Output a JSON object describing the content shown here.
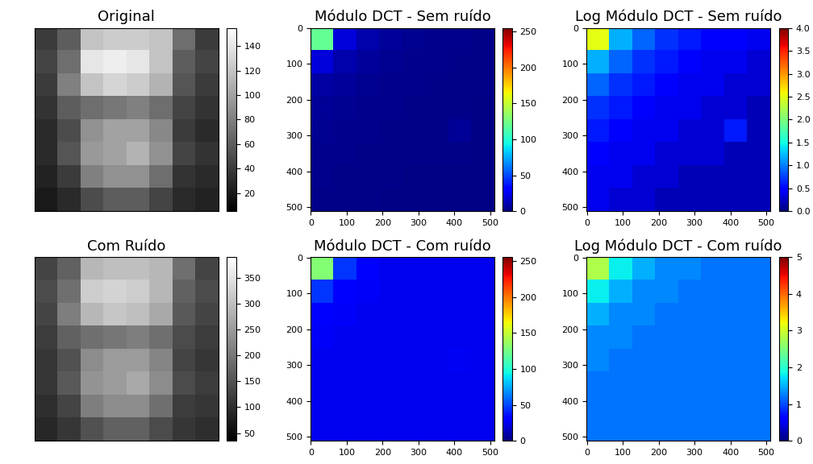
{
  "chart_data": [
    {
      "type": "heatmap",
      "title": "Original",
      "color": "gray",
      "tick_labels": false,
      "cells": [
        [
          40,
          60,
          120,
          125,
          125,
          120,
          70,
          40
        ],
        [
          45,
          70,
          140,
          145,
          140,
          120,
          60,
          45
        ],
        [
          40,
          80,
          120,
          130,
          125,
          110,
          55,
          40
        ],
        [
          35,
          60,
          70,
          75,
          80,
          70,
          45,
          35
        ],
        [
          30,
          50,
          90,
          100,
          100,
          85,
          40,
          30
        ],
        [
          30,
          55,
          95,
          100,
          110,
          90,
          45,
          35
        ],
        [
          25,
          40,
          80,
          90,
          90,
          70,
          35,
          30
        ],
        [
          20,
          30,
          50,
          60,
          60,
          45,
          30,
          25
        ]
      ],
      "color_range": [
        5,
        155
      ],
      "color_ticks": [
        20,
        40,
        60,
        80,
        100,
        120,
        140
      ]
    },
    {
      "type": "heatmap",
      "title": "Módulo DCT - Sem ruído",
      "color": "jet",
      "xlim": [
        -0.5,
        511.5
      ],
      "ylim": [
        511.5,
        -0.5
      ],
      "xticks": [
        0,
        100,
        200,
        300,
        400,
        500
      ],
      "yticks": [
        0,
        100,
        200,
        300,
        400,
        500
      ],
      "cells": [
        [
          120,
          20,
          10,
          6,
          4,
          3,
          3,
          2
        ],
        [
          20,
          10,
          6,
          4,
          3,
          3,
          2,
          2
        ],
        [
          8,
          6,
          4,
          3,
          3,
          2,
          2,
          2
        ],
        [
          5,
          4,
          3,
          3,
          2,
          2,
          2,
          1
        ],
        [
          4,
          3,
          3,
          2,
          2,
          2,
          5,
          1
        ],
        [
          3,
          3,
          2,
          2,
          2,
          2,
          2,
          1
        ],
        [
          3,
          2,
          2,
          2,
          1,
          1,
          1,
          1
        ],
        [
          2,
          2,
          2,
          1,
          1,
          1,
          1,
          1
        ]
      ],
      "color_range": [
        0,
        255
      ],
      "color_ticks": [
        0,
        50,
        100,
        150,
        200,
        250
      ]
    },
    {
      "type": "heatmap",
      "title": "Log Módulo DCT - Sem ruído",
      "color": "jet",
      "xlim": [
        -0.5,
        511.5
      ],
      "ylim": [
        511.5,
        -0.5
      ],
      "xticks": [
        0,
        100,
        200,
        300,
        400,
        500
      ],
      "yticks": [
        0,
        100,
        200,
        300,
        400,
        500
      ],
      "cells": [
        [
          2.5,
          1.2,
          0.9,
          0.7,
          0.6,
          0.5,
          0.5,
          0.4
        ],
        [
          1.2,
          0.9,
          0.7,
          0.6,
          0.5,
          0.4,
          0.4,
          0.3
        ],
        [
          0.9,
          0.7,
          0.6,
          0.5,
          0.4,
          0.4,
          0.3,
          0.3
        ],
        [
          0.7,
          0.6,
          0.5,
          0.4,
          0.4,
          0.3,
          0.3,
          0.2
        ],
        [
          0.6,
          0.5,
          0.4,
          0.4,
          0.3,
          0.3,
          0.6,
          0.2
        ],
        [
          0.5,
          0.4,
          0.4,
          0.3,
          0.3,
          0.3,
          0.2,
          0.2
        ],
        [
          0.4,
          0.4,
          0.3,
          0.3,
          0.2,
          0.2,
          0.2,
          0.2
        ],
        [
          0.4,
          0.3,
          0.3,
          0.2,
          0.2,
          0.2,
          0.2,
          0.2
        ]
      ],
      "color_range": [
        0.0,
        4.0
      ],
      "color_ticks": [
        0.0,
        0.5,
        1.0,
        1.5,
        2.0,
        2.5,
        3.0,
        3.5,
        4.0
      ]
    },
    {
      "type": "heatmap",
      "title": "Com Ruído",
      "color": "gray",
      "tick_labels": false,
      "cells": [
        [
          130,
          170,
          290,
          300,
          300,
          290,
          190,
          130
        ],
        [
          140,
          190,
          320,
          330,
          320,
          290,
          170,
          140
        ],
        [
          130,
          210,
          290,
          310,
          300,
          270,
          160,
          130
        ],
        [
          120,
          170,
          190,
          200,
          210,
          190,
          140,
          120
        ],
        [
          110,
          150,
          230,
          250,
          250,
          220,
          130,
          110
        ],
        [
          110,
          160,
          240,
          250,
          270,
          230,
          140,
          120
        ],
        [
          100,
          130,
          210,
          230,
          230,
          190,
          120,
          110
        ],
        [
          90,
          110,
          150,
          170,
          170,
          140,
          110,
          100
        ]
      ],
      "color_range": [
        35,
        390
      ],
      "color_ticks": [
        50,
        100,
        150,
        200,
        250,
        300,
        350
      ]
    },
    {
      "type": "heatmap",
      "title": "Módulo DCT - Com ruído",
      "color": "jet",
      "xlim": [
        -0.5,
        511.5
      ],
      "ylim": [
        511.5,
        -0.5
      ],
      "xticks": [
        0,
        100,
        200,
        300,
        400,
        500
      ],
      "yticks": [
        0,
        100,
        200,
        300,
        400,
        500
      ],
      "cells": [
        [
          130,
          45,
          30,
          25,
          25,
          25,
          25,
          25
        ],
        [
          45,
          32,
          27,
          25,
          25,
          25,
          25,
          25
        ],
        [
          30,
          27,
          25,
          25,
          25,
          25,
          25,
          25
        ],
        [
          27,
          25,
          25,
          25,
          25,
          25,
          25,
          25
        ],
        [
          25,
          25,
          25,
          25,
          25,
          25,
          26,
          25
        ],
        [
          25,
          25,
          25,
          25,
          25,
          25,
          25,
          25
        ],
        [
          25,
          25,
          25,
          25,
          25,
          25,
          25,
          25
        ],
        [
          25,
          25,
          25,
          25,
          25,
          25,
          25,
          25
        ]
      ],
      "color_range": [
        0,
        255
      ],
      "color_ticks": [
        0,
        50,
        100,
        150,
        200,
        250
      ]
    },
    {
      "type": "heatmap",
      "title": "Log Módulo DCT - Com ruído",
      "color": "jet",
      "xlim": [
        -0.5,
        511.5
      ],
      "ylim": [
        511.5,
        -0.5
      ],
      "xticks": [
        0,
        100,
        200,
        300,
        400,
        500
      ],
      "yticks": [
        0,
        100,
        200,
        300,
        400,
        500
      ],
      "cells": [
        [
          2.8,
          1.8,
          1.5,
          1.3,
          1.3,
          1.2,
          1.2,
          1.2
        ],
        [
          1.8,
          1.5,
          1.3,
          1.3,
          1.2,
          1.2,
          1.2,
          1.2
        ],
        [
          1.5,
          1.3,
          1.3,
          1.2,
          1.2,
          1.2,
          1.2,
          1.2
        ],
        [
          1.3,
          1.3,
          1.2,
          1.2,
          1.2,
          1.2,
          1.2,
          1.2
        ],
        [
          1.3,
          1.2,
          1.2,
          1.2,
          1.2,
          1.2,
          1.2,
          1.2
        ],
        [
          1.2,
          1.2,
          1.2,
          1.2,
          1.2,
          1.2,
          1.2,
          1.2
        ],
        [
          1.2,
          1.2,
          1.2,
          1.2,
          1.2,
          1.2,
          1.2,
          1.2
        ],
        [
          1.2,
          1.2,
          1.2,
          1.2,
          1.2,
          1.2,
          1.2,
          1.2
        ]
      ],
      "color_range": [
        0,
        5
      ],
      "color_ticks": [
        0,
        1,
        2,
        3,
        4,
        5
      ]
    }
  ]
}
